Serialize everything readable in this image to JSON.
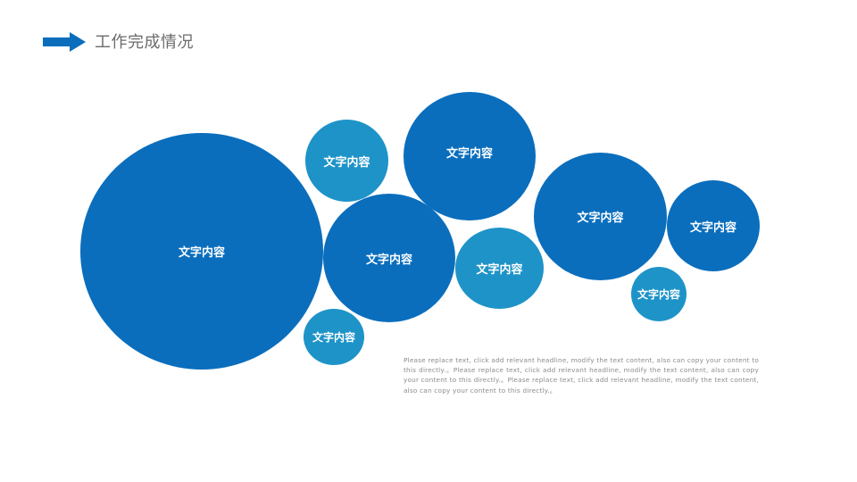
{
  "header": {
    "title": "工作完成情况",
    "accent_color": "#0a6ebd",
    "icon": "arrow-right-icon"
  },
  "bubbles": [
    {
      "label": "文字内容",
      "tone": "dark"
    },
    {
      "label": "文字内容",
      "tone": "light"
    },
    {
      "label": "文字内容",
      "tone": "dark"
    },
    {
      "label": "文字内容",
      "tone": "dark"
    },
    {
      "label": "文字内容",
      "tone": "light"
    },
    {
      "label": "文字内容",
      "tone": "light"
    },
    {
      "label": "文字内容",
      "tone": "dark"
    },
    {
      "label": "文字内容",
      "tone": "dark"
    },
    {
      "label": "文字内容",
      "tone": "light"
    }
  ],
  "colors": {
    "dark": "#0a6ebd",
    "light": "#1e93c8"
  },
  "body_text": "Please replace text, click add relevant headline, modify the text content, also can copy your content to this directly.。Please replace text, click add relevant headline, modify the text content, also can copy your content to this directly.。Please replace text, click add relevant headline, modify the text content, also can copy your content to this directly.。"
}
